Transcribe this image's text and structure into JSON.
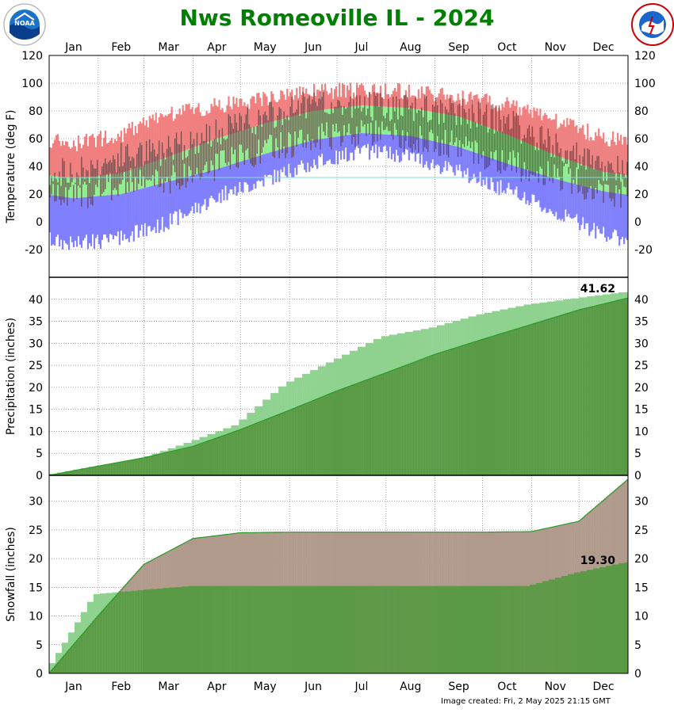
{
  "title": "Nws Romeoville IL - 2024",
  "title_color": "#008000",
  "footer": "Image created: Fri, 2 May 2025 21:15 GMT",
  "logos": {
    "left": "noaa-logo",
    "right": "nws-logo"
  },
  "chart_data": [
    {
      "type": "bar",
      "ylabel": "Temperature (deg F)",
      "ylim": [
        -40,
        120
      ],
      "yticks": [
        -20,
        0,
        20,
        40,
        60,
        80,
        100,
        120
      ],
      "months": [
        "Jan",
        "Feb",
        "Mar",
        "Apr",
        "May",
        "Jun",
        "Jul",
        "Aug",
        "Sep",
        "Oct",
        "Nov",
        "Dec"
      ],
      "series": [
        {
          "key": "record_high_range",
          "color": "#f08080"
        },
        {
          "key": "normal_range",
          "color": "#90ee90"
        },
        {
          "key": "record_low_range",
          "color": "#8080ff"
        },
        {
          "key": "observed",
          "color": "#5a3a3a"
        }
      ],
      "normal_high_monthly": [
        31,
        35,
        47,
        60,
        71,
        80,
        84,
        82,
        76,
        63,
        48,
        36
      ],
      "normal_low_monthly": [
        17,
        20,
        29,
        38,
        49,
        59,
        64,
        62,
        54,
        42,
        31,
        22
      ],
      "record_high_monthly": [
        62,
        69,
        83,
        90,
        94,
        100,
        101,
        100,
        96,
        90,
        79,
        67
      ],
      "record_low_monthly": [
        -22,
        -18,
        -6,
        12,
        25,
        36,
        45,
        42,
        30,
        17,
        1,
        -15
      ],
      "observed_high_monthly": [
        34,
        48,
        52,
        64,
        76,
        85,
        84,
        82,
        80,
        72,
        55,
        38
      ],
      "observed_low_monthly": [
        18,
        28,
        30,
        40,
        52,
        60,
        63,
        60,
        55,
        42,
        34,
        22
      ],
      "grid": true
    },
    {
      "type": "area",
      "ylabel": "Precipitation (inches)",
      "ylim": [
        0,
        45
      ],
      "yticks": [
        0,
        5,
        10,
        15,
        20,
        25,
        30,
        35,
        40
      ],
      "annotation": "41.62",
      "cumulative_observed_monthly_end": [
        2.0,
        3.7,
        7.5,
        11.5,
        20.8,
        26.0,
        31.5,
        33.5,
        36.5,
        38.8,
        40.2,
        41.62
      ],
      "cumulative_normal_monthly_end": [
        2.1,
        4.0,
        6.6,
        10.4,
        14.8,
        19.2,
        23.3,
        27.5,
        30.9,
        34.3,
        37.6,
        40.3
      ],
      "colors": {
        "observed": "#8fd28f",
        "normal": "#5a9a45",
        "normal_line": "#2a9a2a"
      },
      "grid": true
    },
    {
      "type": "area",
      "ylabel": "Snowfall (inches)",
      "ylim": [
        0,
        34.5
      ],
      "yticks": [
        0,
        5,
        10,
        15,
        20,
        25,
        30
      ],
      "annotation": "19.30",
      "cumulative_observed_monthly_end": [
        13.8,
        14.5,
        15.2,
        15.2,
        15.2,
        15.2,
        15.2,
        15.2,
        15.2,
        15.2,
        17.5,
        19.3
      ],
      "cumulative_normal_monthly_end": [
        10.0,
        19.0,
        23.5,
        24.5,
        24.6,
        24.6,
        24.6,
        24.6,
        24.6,
        24.7,
        26.5,
        33.8
      ],
      "colors": {
        "observed": "#8fd28f",
        "observed_dark": "#5a9a45",
        "normal": "#b09a8c",
        "normal_line": "#2a9a2a"
      },
      "grid": true
    }
  ]
}
